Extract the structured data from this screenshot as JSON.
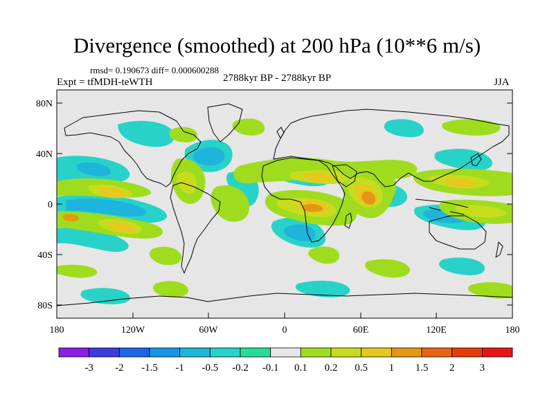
{
  "title": "Divergence (smoothed) at 200 hPa (10**6 m/s)",
  "stats": "rmsd= 0.190673  diff= 0.000600288",
  "experiment": "Expt = tfMDH-teWTH",
  "period": "2788kyr BP - 2788kyr BP",
  "season": "JJA",
  "lat_ticks": [
    "80N",
    "40N",
    "0",
    "40S",
    "80S"
  ],
  "lon_ticks": [
    "180",
    "120W",
    "60W",
    "0",
    "60E",
    "120E",
    "180"
  ],
  "colorbar": {
    "labels": [
      "-3",
      "-2",
      "-1.5",
      "-1",
      "-0.5",
      "-0.2",
      "-0.1",
      "0.1",
      "0.2",
      "0.5",
      "1",
      "1.5",
      "2",
      "3"
    ],
    "colors": [
      "#8a1ee6",
      "#3c3cdc",
      "#1e64e6",
      "#1496e6",
      "#1eb4dc",
      "#28d2c8",
      "#28dc96",
      "#e6e6e6",
      "#a0dc1e",
      "#c8dc1e",
      "#e6c81e",
      "#e69614",
      "#e66414",
      "#e63c0a",
      "#e61414"
    ]
  },
  "colors": {
    "background": "#e6e6e6",
    "positive": "#c8dc1e",
    "negative": "#1eb4dc",
    "coastline": "#000000"
  }
}
